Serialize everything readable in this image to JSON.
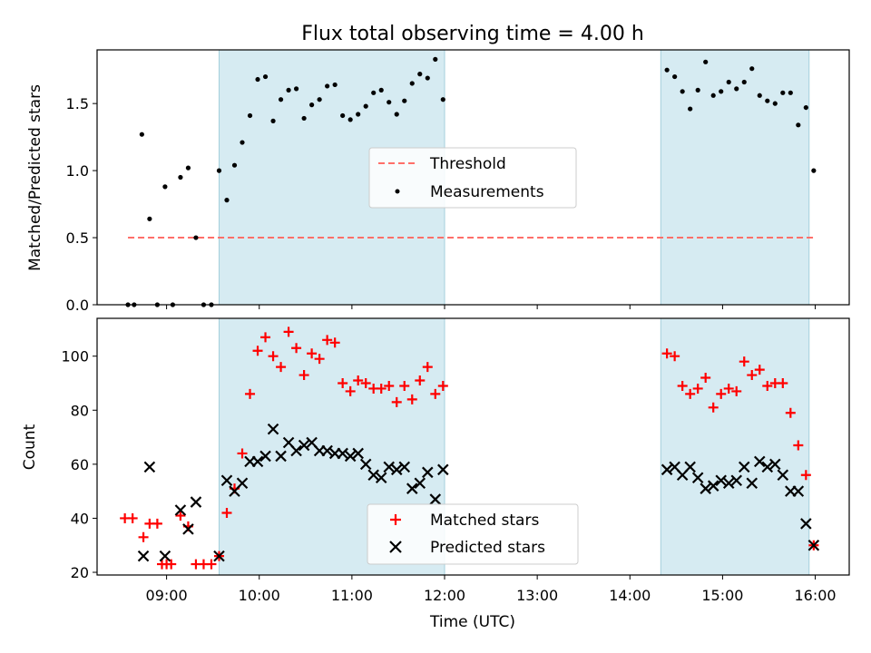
{
  "chart_data": [
    {
      "type": "scatter",
      "title": "Flux total observing time = 4.00 h",
      "ylabel": "Matched/Predicted stars",
      "xlabel": "",
      "xlim": [
        "08:15",
        "16:22"
      ],
      "ylim": [
        0,
        1.9
      ],
      "yticks": [
        0.0,
        0.5,
        1.0,
        1.5
      ],
      "ytick_labels": [
        "0.0",
        "0.5",
        "1.0",
        "1.5"
      ],
      "grid": false,
      "legend_position": "center",
      "shaded_intervals": [
        [
          "09:34",
          "12:00"
        ],
        [
          "14:20",
          "15:56"
        ]
      ],
      "series": [
        {
          "name": "Threshold",
          "style": "dashed-line",
          "color": "#ff6f69",
          "x": [
            "08:35",
            "16:00"
          ],
          "y": [
            0.5,
            0.5
          ]
        },
        {
          "name": "Measurements",
          "style": "dot",
          "color": "#000000",
          "x": [
            "08:35",
            "08:39",
            "08:44",
            "08:49",
            "08:54",
            "08:59",
            "09:04",
            "09:09",
            "09:14",
            "09:19",
            "09:24",
            "09:29",
            "09:34",
            "09:39",
            "09:44",
            "09:49",
            "09:54",
            "09:59",
            "10:04",
            "10:09",
            "10:14",
            "10:19",
            "10:24",
            "10:29",
            "10:34",
            "10:39",
            "10:44",
            "10:49",
            "10:54",
            "10:59",
            "11:04",
            "11:09",
            "11:14",
            "11:19",
            "11:24",
            "11:29",
            "11:34",
            "11:39",
            "11:44",
            "11:49",
            "11:54",
            "11:59",
            "14:24",
            "14:29",
            "14:34",
            "14:39",
            "14:44",
            "14:49",
            "14:54",
            "14:59",
            "15:04",
            "15:09",
            "15:14",
            "15:19",
            "15:24",
            "15:29",
            "15:34",
            "15:39",
            "15:44",
            "15:49",
            "15:54",
            "15:59"
          ],
          "y": [
            0,
            0,
            1.27,
            0.64,
            0,
            0.88,
            0,
            0.95,
            1.02,
            0.5,
            0,
            0,
            1.0,
            0.78,
            1.04,
            1.21,
            1.41,
            1.68,
            1.7,
            1.37,
            1.53,
            1.6,
            1.61,
            1.39,
            1.49,
            1.53,
            1.63,
            1.64,
            1.41,
            1.38,
            1.42,
            1.48,
            1.58,
            1.6,
            1.51,
            1.42,
            1.52,
            1.65,
            1.72,
            1.69,
            1.83,
            1.53,
            1.75,
            1.7,
            1.59,
            1.46,
            1.6,
            1.81,
            1.56,
            1.59,
            1.66,
            1.61,
            1.66,
            1.76,
            1.56,
            1.52,
            1.5,
            1.58,
            1.58,
            1.34,
            1.47,
            1.0
          ]
        }
      ]
    },
    {
      "type": "scatter",
      "title": "",
      "ylabel": "Count",
      "xlabel": "Time (UTC)",
      "xlim": [
        "08:15",
        "16:22"
      ],
      "ylim": [
        19,
        114
      ],
      "yticks": [
        20,
        40,
        60,
        80,
        100
      ],
      "ytick_labels": [
        "20",
        "40",
        "60",
        "80",
        "100"
      ],
      "xticks": [
        "09:00",
        "10:00",
        "11:00",
        "12:00",
        "13:00",
        "14:00",
        "15:00",
        "16:00"
      ],
      "xtick_labels": [
        "09:00",
        "10:00",
        "11:00",
        "12:00",
        "13:00",
        "14:00",
        "15:00",
        "16:00"
      ],
      "grid": false,
      "legend_position": "lower center",
      "shaded_intervals": [
        [
          "09:34",
          "12:00"
        ],
        [
          "14:20",
          "15:56"
        ]
      ],
      "series": [
        {
          "name": "Matched stars",
          "marker": "plus",
          "color": "#ff0000",
          "x": [
            "08:33",
            "08:38",
            "08:45",
            "08:49",
            "08:54",
            "08:57",
            "09:00",
            "09:03",
            "09:09",
            "09:14",
            "09:19",
            "09:24",
            "09:29",
            "09:34",
            "09:39",
            "09:44",
            "09:49",
            "09:54",
            "09:59",
            "10:04",
            "10:09",
            "10:14",
            "10:19",
            "10:24",
            "10:29",
            "10:34",
            "10:39",
            "10:44",
            "10:49",
            "10:54",
            "10:59",
            "11:04",
            "11:09",
            "11:14",
            "11:19",
            "11:24",
            "11:29",
            "11:34",
            "11:39",
            "11:44",
            "11:49",
            "11:54",
            "11:59",
            "14:24",
            "14:29",
            "14:34",
            "14:39",
            "14:44",
            "14:49",
            "14:54",
            "14:59",
            "15:04",
            "15:09",
            "15:14",
            "15:19",
            "15:24",
            "15:29",
            "15:34",
            "15:39",
            "15:44",
            "15:49",
            "15:54",
            "15:59"
          ],
          "y": [
            40,
            40,
            33,
            38,
            38,
            23,
            23,
            23,
            41,
            37,
            23,
            23,
            23,
            26,
            42,
            51,
            64,
            86,
            102,
            107,
            100,
            96,
            109,
            103,
            93,
            101,
            99,
            106,
            105,
            90,
            87,
            91,
            90,
            88,
            88,
            89,
            83,
            89,
            84,
            91,
            96,
            86,
            89,
            101,
            100,
            89,
            86,
            88,
            92,
            81,
            86,
            88,
            87,
            98,
            93,
            95,
            89,
            90,
            90,
            79,
            67,
            56,
            30
          ]
        },
        {
          "name": "Predicted stars",
          "marker": "x",
          "color": "#000000",
          "x": [
            "08:45",
            "08:49",
            "08:59",
            "09:09",
            "09:14",
            "09:19",
            "09:34",
            "09:39",
            "09:44",
            "09:49",
            "09:54",
            "09:59",
            "10:04",
            "10:09",
            "10:14",
            "10:19",
            "10:24",
            "10:29",
            "10:34",
            "10:39",
            "10:44",
            "10:49",
            "10:54",
            "10:59",
            "11:04",
            "11:09",
            "11:14",
            "11:19",
            "11:24",
            "11:29",
            "11:34",
            "11:39",
            "11:44",
            "11:49",
            "11:54",
            "11:59",
            "14:24",
            "14:29",
            "14:34",
            "14:39",
            "14:44",
            "14:49",
            "14:54",
            "14:59",
            "15:04",
            "15:09",
            "15:14",
            "15:19",
            "15:24",
            "15:29",
            "15:34",
            "15:39",
            "15:44",
            "15:49",
            "15:54",
            "15:59"
          ],
          "y": [
            26,
            59,
            26,
            43,
            36,
            46,
            26,
            54,
            50,
            53,
            61,
            61,
            63,
            73,
            63,
            68,
            65,
            67,
            68,
            65,
            65,
            64,
            64,
            63,
            64,
            60,
            56,
            55,
            59,
            58,
            59,
            51,
            53,
            57,
            47,
            58,
            58,
            59,
            56,
            59,
            55,
            51,
            52,
            54,
            53,
            54,
            59,
            53,
            61,
            59,
            60,
            56,
            50,
            50,
            38,
            30
          ]
        }
      ]
    }
  ]
}
